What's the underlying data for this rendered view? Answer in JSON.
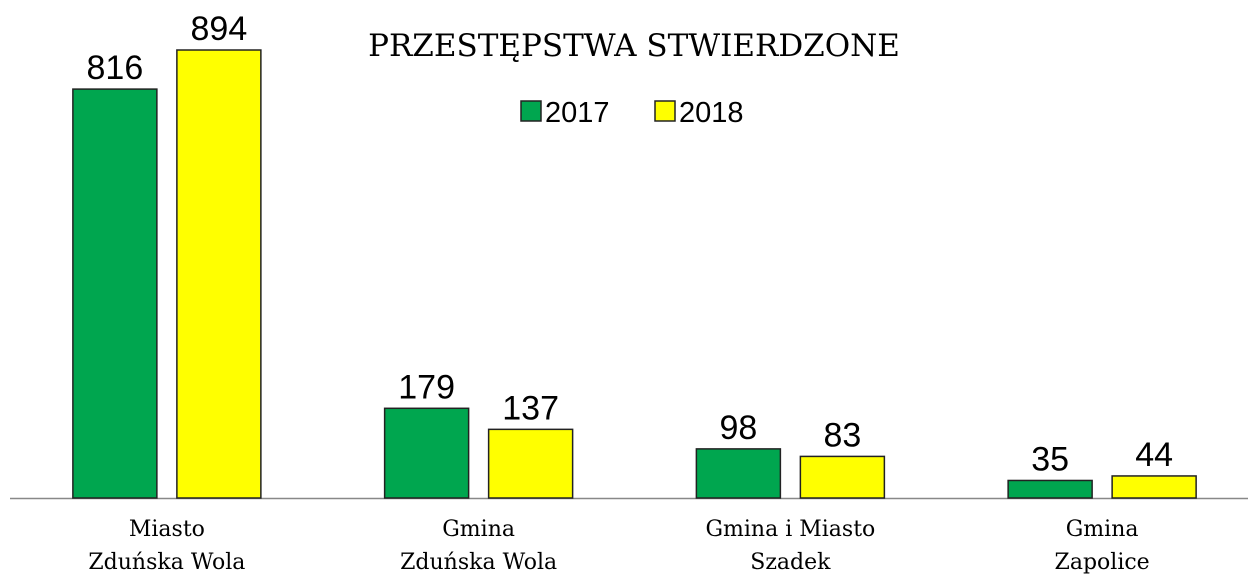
{
  "chart_data": {
    "type": "bar",
    "title": "PRZESTĘPSTWA STWIERDZONE",
    "categories": [
      [
        "Miasto",
        "Zduńska Wola"
      ],
      [
        "Gmina",
        "Zduńska Wola"
      ],
      [
        "Gmina i Miasto",
        "Szadek"
      ],
      [
        "Gmina",
        "Zapolice"
      ]
    ],
    "series": [
      {
        "name": "2017",
        "color": "#00a64f",
        "values": [
          816,
          179,
          98,
          35
        ]
      },
      {
        "name": "2018",
        "color": "#ffff00",
        "values": [
          894,
          137,
          83,
          44
        ]
      }
    ],
    "ylim": [
      0,
      900
    ],
    "legend": "top"
  }
}
